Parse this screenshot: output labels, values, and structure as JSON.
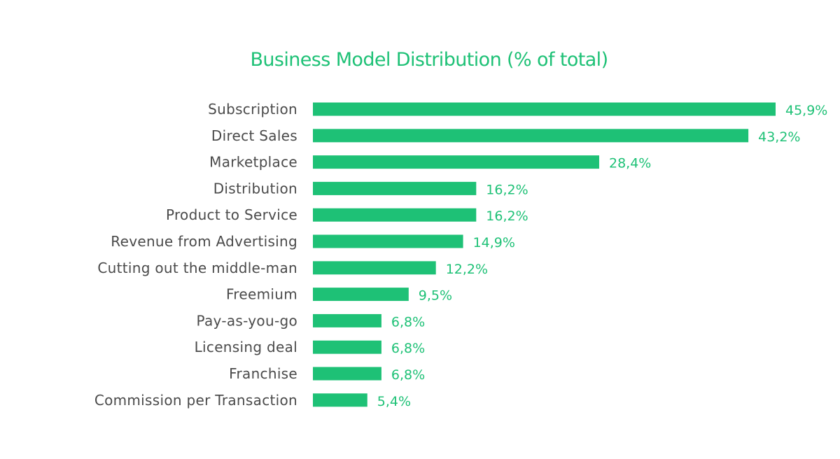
{
  "colors": {
    "bar": "#1ec176",
    "title": "#1ec176",
    "category_text": "#4a4a4a",
    "value_text": "#1ec176"
  },
  "chart_data": {
    "type": "bar",
    "orientation": "horizontal",
    "title": "Business Model Distribution (% of total)",
    "xlabel": "",
    "ylabel": "",
    "xlim": [
      0,
      45.9
    ],
    "grid": false,
    "legend": "none",
    "categories": [
      "Subscription",
      "Direct Sales",
      "Marketplace",
      "Distribution",
      "Product to Service",
      "Revenue from Advertising",
      "Cutting out the middle-man",
      "Freemium",
      "Pay-as-you-go",
      "Licensing deal",
      "Franchise",
      "Commission per Transaction"
    ],
    "values": [
      45.9,
      43.2,
      28.4,
      16.2,
      16.2,
      14.9,
      12.2,
      9.5,
      6.8,
      6.8,
      6.8,
      5.4
    ],
    "value_labels": [
      "45,9%",
      "43,2%",
      "28,4%",
      "16,2%",
      "16,2%",
      "14,9%",
      "12,2%",
      "9,5%",
      "6,8%",
      "6,8%",
      "6,8%",
      "5,4%"
    ]
  }
}
